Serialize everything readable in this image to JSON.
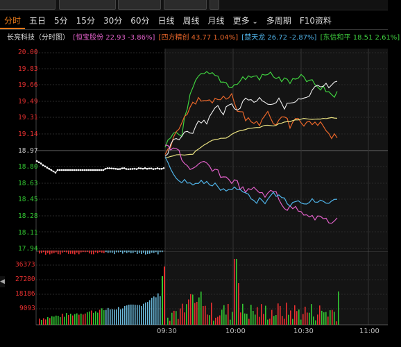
{
  "tabs": [
    "分时",
    "五日",
    "5分",
    "15分",
    "30分",
    "60分",
    "日线",
    "周线",
    "月线",
    "更多",
    "多周期",
    "F10资料"
  ],
  "more_arrow": "⌄",
  "legend": {
    "main": "长亮科技（分时图）",
    "items": [
      {
        "text": "[恒宝股份 22.93 -3.86%]",
        "color": "#e060c8"
      },
      {
        "text": "[四方精创 43.77 1.04%]",
        "color": "#e8662a"
      },
      {
        "text": "[楚天龙 26.72 -2.87%]",
        "color": "#4fb3e8"
      },
      {
        "text": "[东信和平 18.51 2.61%]",
        "color": "#3fd03f"
      }
    ]
  },
  "y_axis": {
    "up": [
      "20.00",
      "19.83",
      "19.66",
      "19.49",
      "19.31",
      "19.14"
    ],
    "mid": "18.97",
    "down": [
      "18.80",
      "18.63",
      "18.45",
      "18.28",
      "18.11",
      "17.94"
    ],
    "volume": [
      "36373",
      "27280",
      "18186",
      "9093"
    ]
  },
  "x_axis": [
    "09:30",
    "10:00",
    "10:30",
    "11:00"
  ],
  "colors": {
    "up": "#e83030",
    "down": "#32c832",
    "mid": "#cccccc",
    "tab_active": "#e87a1a"
  }
}
